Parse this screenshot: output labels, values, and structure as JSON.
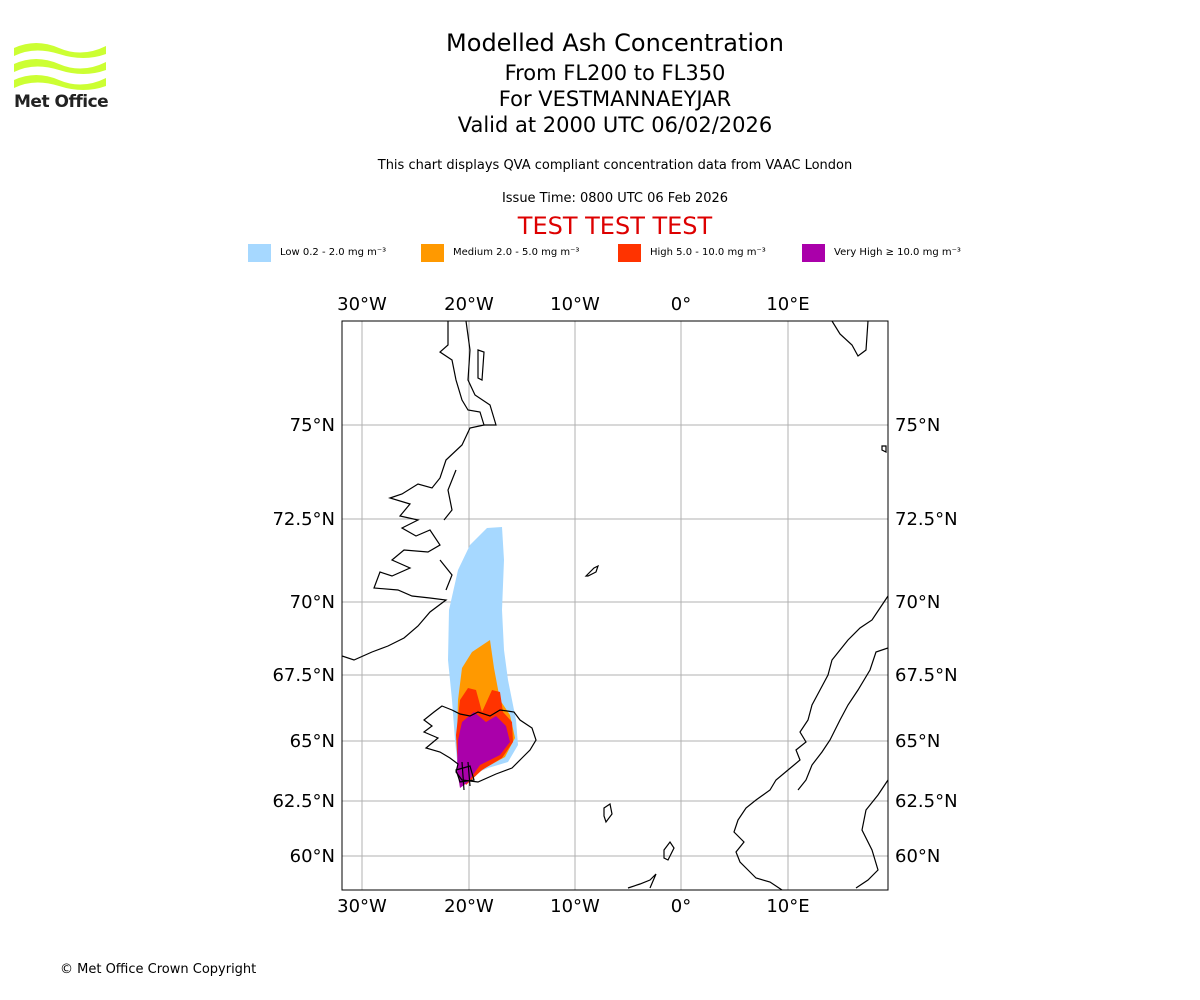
{
  "header": {
    "title": "Modelled Ash Concentration",
    "levels": "From FL200 to FL350",
    "location": "For VESTMANNAEYJAR",
    "valid": "Valid at 2000 UTC 06/02/2026",
    "note": "This chart displays QVA compliant concentration data from VAAC London",
    "issue": "Issue Time: 0800 UTC 06 Feb 2026",
    "test_banner": "TEST TEST TEST"
  },
  "logo": {
    "text": "Met Office",
    "color": "#ccff33"
  },
  "legend": [
    {
      "label": "Low 0.2 - 2.0 mg m⁻³",
      "color": "#a6d8ff"
    },
    {
      "label": "Medium 2.0 - 5.0 mg m⁻³",
      "color": "#ff9900"
    },
    {
      "label": "High 5.0 - 10.0 mg m⁻³",
      "color": "#ff3300"
    },
    {
      "label": "Very High ≥ 10.0 mg m⁻³",
      "color": "#aa00aa"
    }
  ],
  "map": {
    "lon_labels": [
      "30°W",
      "20°W",
      "10°W",
      "0°",
      "10°E"
    ],
    "lat_labels": [
      "75°N",
      "72.5°N",
      "70°N",
      "67.5°N",
      "65°N",
      "62.5°N",
      "60°N"
    ]
  },
  "footer": {
    "copyright": "© Met Office Crown Copyright"
  }
}
